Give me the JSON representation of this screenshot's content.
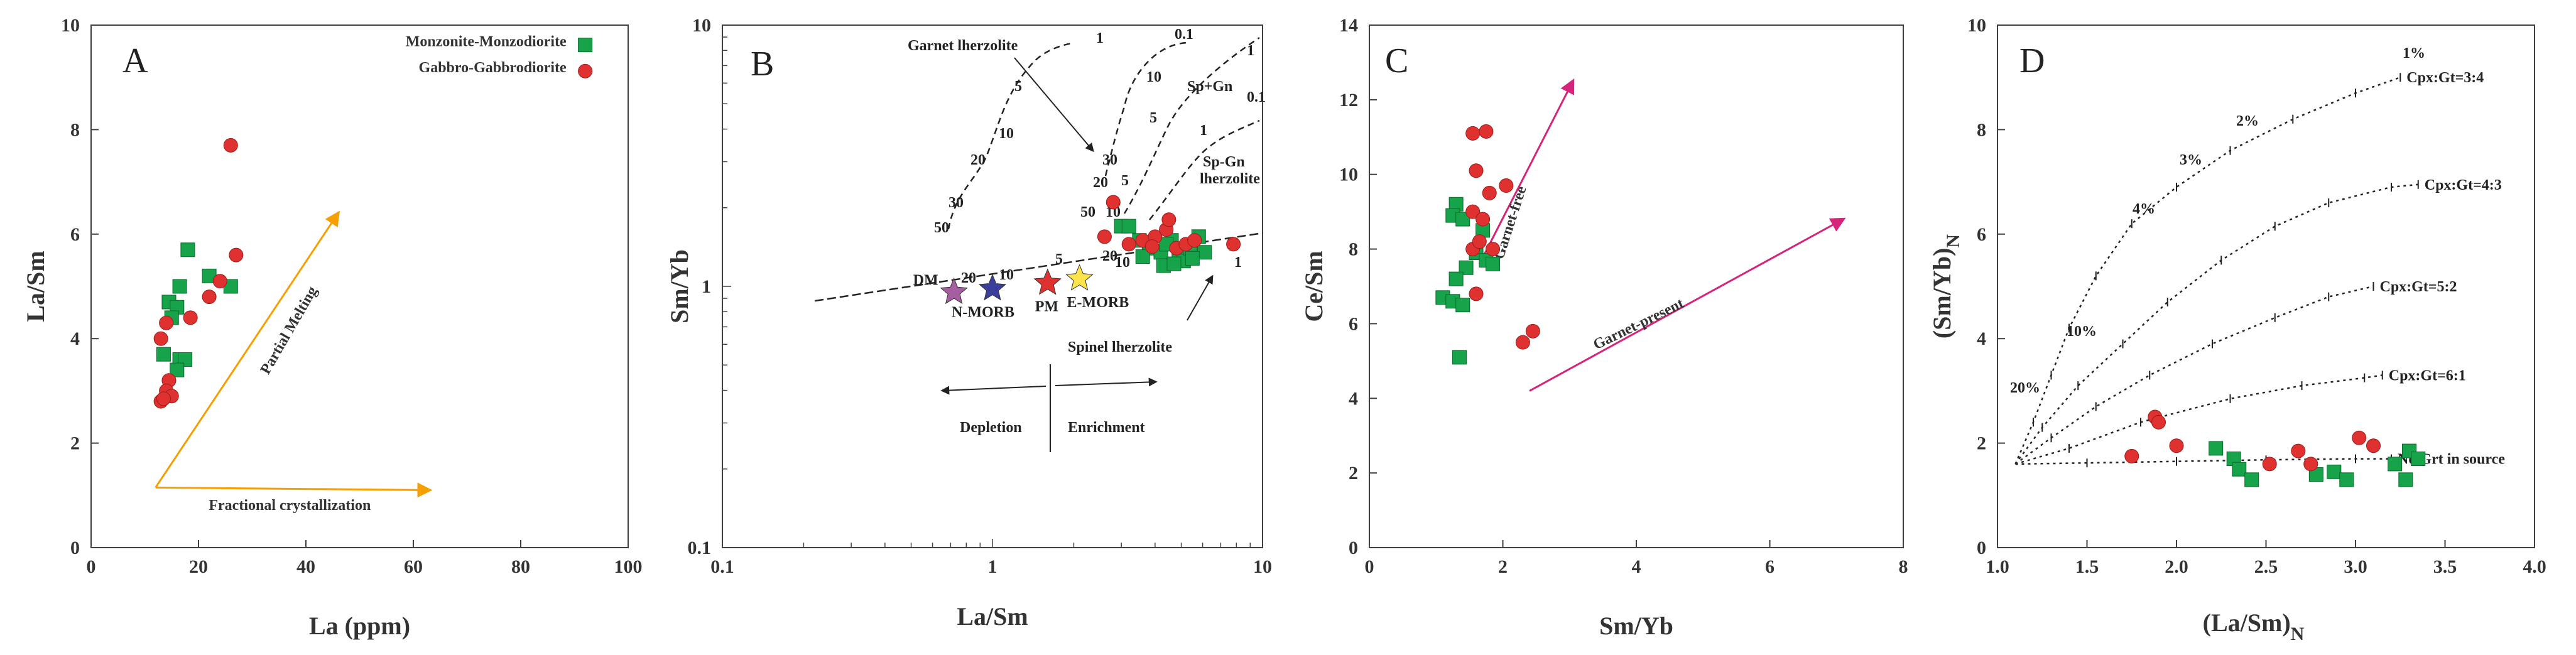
{
  "colors": {
    "green": "#16a34a",
    "red": "#e03131",
    "orange": "#f59f00",
    "magenta": "#d6247a",
    "purple_star": "#a55fa0",
    "blue_star": "#3b3f9c",
    "red_star": "#e03131",
    "yellow_star": "#ffe34a",
    "axis": "#404040"
  },
  "chart_data": [
    {
      "panel": "A",
      "type": "scatter",
      "xlabel": "La (ppm)",
      "ylabel": "La/Sm",
      "xlim": [
        0,
        100
      ],
      "ylim": [
        0,
        10
      ],
      "x_ticks": [
        0,
        20,
        40,
        60,
        80,
        100
      ],
      "y_ticks": [
        0,
        2,
        4,
        6,
        8,
        10
      ],
      "legend_position": "top-right",
      "series": [
        {
          "name": "Monzonite-Monzodiorite",
          "marker": "square",
          "points": [
            [
              18,
              5.7
            ],
            [
              16.5,
              5.0
            ],
            [
              22,
              5.2
            ],
            [
              26,
              5.0
            ],
            [
              14.5,
              4.7
            ],
            [
              16,
              4.6
            ],
            [
              15,
              4.4
            ],
            [
              13.5,
              3.7
            ],
            [
              16.5,
              3.6
            ],
            [
              17.5,
              3.6
            ],
            [
              16,
              3.4
            ]
          ]
        },
        {
          "name": "Gabbro-Gabbrodiorite",
          "marker": "circle",
          "points": [
            [
              26,
              7.7
            ],
            [
              27,
              5.6
            ],
            [
              22,
              4.8
            ],
            [
              24,
              5.1
            ],
            [
              18.5,
              4.4
            ],
            [
              14,
              4.3
            ],
            [
              13,
              4.0
            ],
            [
              14.5,
              3.2
            ],
            [
              14,
              3.0
            ],
            [
              15,
              2.9
            ],
            [
              13,
              2.8
            ],
            [
              13.5,
              2.85
            ]
          ]
        }
      ],
      "arrows": [
        {
          "label": "Partial Melting",
          "from": [
            12,
            1.15
          ],
          "to": [
            46,
            6.4
          ]
        },
        {
          "label": "Fractional crystallization",
          "from": [
            12,
            1.15
          ],
          "to": [
            63,
            1.1
          ]
        }
      ]
    },
    {
      "panel": "B",
      "type": "scatter",
      "xscale": "log",
      "yscale": "log",
      "xlabel": "La/Sm",
      "ylabel": "Sm/Yb",
      "xlim": [
        0.1,
        10
      ],
      "ylim": [
        0.1,
        10
      ],
      "x_ticks": [
        0.1,
        1,
        10
      ],
      "y_ticks": [
        0.1,
        1,
        10
      ],
      "reference_points": [
        {
          "name": "DM",
          "x": 0.72,
          "y": 0.95,
          "marker": "star"
        },
        {
          "name": "N-MORB",
          "x": 1.0,
          "y": 0.98,
          "marker": "star"
        },
        {
          "name": "PM",
          "x": 1.6,
          "y": 1.03,
          "marker": "star"
        },
        {
          "name": "E-MORB",
          "x": 2.1,
          "y": 1.07,
          "marker": "star"
        }
      ],
      "series": [
        {
          "name": "Monzonite-Monzodiorite",
          "marker": "square",
          "points": [
            [
              3.0,
              1.7
            ],
            [
              3.2,
              1.7
            ],
            [
              3.5,
              1.5
            ],
            [
              3.8,
              1.4
            ],
            [
              4.2,
              1.35
            ],
            [
              4.6,
              1.5
            ],
            [
              4.9,
              1.3
            ],
            [
              5.1,
              1.25
            ],
            [
              5.4,
              1.4
            ],
            [
              5.8,
              1.55
            ],
            [
              6.1,
              1.35
            ],
            [
              4.3,
              1.2
            ],
            [
              4.7,
              1.22
            ],
            [
              5.5,
              1.28
            ],
            [
              3.6,
              1.3
            ],
            [
              4.4,
              1.45
            ]
          ]
        },
        {
          "name": "Gabbro-Gabbrodiorite",
          "marker": "circle",
          "points": [
            [
              2.8,
              2.1
            ],
            [
              2.6,
              1.55
            ],
            [
              3.2,
              1.45
            ],
            [
              3.6,
              1.5
            ],
            [
              4.0,
              1.55
            ],
            [
              4.4,
              1.65
            ],
            [
              4.5,
              1.8
            ],
            [
              4.8,
              1.4
            ],
            [
              5.2,
              1.45
            ],
            [
              5.6,
              1.5
            ],
            [
              7.8,
              1.45
            ],
            [
              3.9,
              1.42
            ]
          ]
        }
      ],
      "curve_labels": [
        "Garnet lherzolite",
        "Sp+Gn",
        "Sp-Gn lherzolite",
        "Spinel lherzolite"
      ],
      "melt_fraction_labels": [
        "1",
        "0.1",
        "5",
        "10",
        "20",
        "30",
        "50",
        "10",
        "5",
        "1",
        "0.1",
        "30",
        "20",
        "10",
        "5",
        "1",
        "50",
        "20",
        "10",
        "5",
        "20",
        "10",
        "1"
      ],
      "annotations": [
        "Depletion",
        "Enrichment"
      ]
    },
    {
      "panel": "C",
      "type": "scatter",
      "xlabel": "Sm/Yb",
      "ylabel": "Ce/Sm",
      "xlim": [
        0,
        8
      ],
      "ylim": [
        0,
        14
      ],
      "x_ticks": [
        0,
        2,
        4,
        6,
        8
      ],
      "y_ticks": [
        0,
        2,
        4,
        6,
        8,
        10,
        12,
        14
      ],
      "series": [
        {
          "name": "Monzonite-Monzodiorite",
          "marker": "square",
          "points": [
            [
              1.3,
              9.2
            ],
            [
              1.25,
              8.9
            ],
            [
              1.4,
              8.8
            ],
            [
              1.7,
              8.5
            ],
            [
              1.6,
              7.9
            ],
            [
              1.75,
              7.7
            ],
            [
              1.85,
              7.6
            ],
            [
              1.45,
              7.5
            ],
            [
              1.3,
              7.2
            ],
            [
              1.1,
              6.7
            ],
            [
              1.25,
              6.6
            ],
            [
              1.4,
              6.5
            ],
            [
              1.35,
              5.1
            ]
          ]
        },
        {
          "name": "Gabbro-Gabbrodiorite",
          "marker": "circle",
          "points": [
            [
              1.55,
              11.1
            ],
            [
              1.75,
              11.15
            ],
            [
              1.6,
              10.1
            ],
            [
              1.8,
              9.5
            ],
            [
              2.05,
              9.7
            ],
            [
              1.55,
              9.0
            ],
            [
              1.7,
              8.8
            ],
            [
              1.55,
              8.0
            ],
            [
              1.65,
              8.2
            ],
            [
              1.85,
              8.0
            ],
            [
              1.6,
              6.8
            ],
            [
              2.3,
              5.5
            ],
            [
              2.45,
              5.8
            ]
          ]
        }
      ],
      "arrows": [
        {
          "label": "Garnet-free",
          "from": [
            1.65,
            7.6
          ],
          "to": [
            3.05,
            12.5
          ]
        },
        {
          "label": "Garnet-present",
          "from": [
            2.4,
            4.2
          ],
          "to": [
            7.1,
            8.8
          ]
        }
      ]
    },
    {
      "panel": "D",
      "type": "scatter",
      "xlabel": "(La/Sm)N",
      "ylabel": "(Sm/Yb)N",
      "xlim": [
        1.0,
        4.0
      ],
      "ylim": [
        0,
        10
      ],
      "x_ticks": [
        1.0,
        1.5,
        2.0,
        2.5,
        3.0,
        3.5,
        4.0
      ],
      "y_ticks": [
        0,
        2,
        4,
        6,
        8,
        10
      ],
      "curves": [
        {
          "name": "Cpx:Gt=3:4",
          "points": [
            [
              1.1,
              1.6
            ],
            [
              1.2,
              2.4
            ],
            [
              1.3,
              3.3
            ],
            [
              1.4,
              4.2
            ],
            [
              1.55,
              5.2
            ],
            [
              1.75,
              6.2
            ],
            [
              2.0,
              6.9
            ],
            [
              2.3,
              7.6
            ],
            [
              2.65,
              8.2
            ],
            [
              3.0,
              8.7
            ],
            [
              3.25,
              9.0
            ]
          ]
        },
        {
          "name": "Cpx:Gt=4:3",
          "points": [
            [
              1.1,
              1.6
            ],
            [
              1.25,
              2.3
            ],
            [
              1.45,
              3.1
            ],
            [
              1.7,
              3.9
            ],
            [
              1.95,
              4.7
            ],
            [
              2.25,
              5.5
            ],
            [
              2.55,
              6.15
            ],
            [
              2.85,
              6.6
            ],
            [
              3.2,
              6.9
            ],
            [
              3.35,
              6.95
            ]
          ]
        },
        {
          "name": "Cpx:Gt=5:2",
          "points": [
            [
              1.1,
              1.6
            ],
            [
              1.3,
              2.1
            ],
            [
              1.55,
              2.7
            ],
            [
              1.85,
              3.3
            ],
            [
              2.2,
              3.9
            ],
            [
              2.55,
              4.4
            ],
            [
              2.85,
              4.8
            ],
            [
              3.1,
              5.0
            ]
          ]
        },
        {
          "name": "Cpx:Gt=6:1",
          "points": [
            [
              1.1,
              1.6
            ],
            [
              1.4,
              1.9
            ],
            [
              1.8,
              2.4
            ],
            [
              2.3,
              2.85
            ],
            [
              2.7,
              3.1
            ],
            [
              3.05,
              3.25
            ],
            [
              3.15,
              3.3
            ]
          ]
        },
        {
          "name": "No Grt in source",
          "points": [
            [
              1.1,
              1.6
            ],
            [
              1.5,
              1.62
            ],
            [
              2.0,
              1.65
            ],
            [
              2.5,
              1.68
            ],
            [
              3.0,
              1.7
            ],
            [
              3.2,
              1.7
            ]
          ]
        }
      ],
      "melt_percent_labels": [
        "1%",
        "2%",
        "3%",
        "4%",
        "10%",
        "20%"
      ],
      "series": [
        {
          "name": "Monzonite-Monzodiorite",
          "marker": "square",
          "points": [
            [
              2.22,
              1.9
            ],
            [
              2.32,
              1.7
            ],
            [
              2.35,
              1.5
            ],
            [
              2.42,
              1.3
            ],
            [
              2.78,
              1.4
            ],
            [
              2.88,
              1.45
            ],
            [
              2.95,
              1.3
            ],
            [
              3.22,
              1.6
            ],
            [
              3.28,
              1.3
            ],
            [
              3.3,
              1.85
            ],
            [
              3.35,
              1.7
            ]
          ]
        },
        {
          "name": "Gabbro-Gabbrodiorite",
          "marker": "circle",
          "points": [
            [
              1.75,
              1.75
            ],
            [
              1.88,
              2.5
            ],
            [
              1.9,
              2.4
            ],
            [
              2.0,
              1.95
            ],
            [
              2.52,
              1.6
            ],
            [
              2.68,
              1.85
            ],
            [
              2.75,
              1.6
            ],
            [
              3.02,
              2.1
            ],
            [
              3.1,
              1.95
            ]
          ]
        }
      ]
    }
  ]
}
